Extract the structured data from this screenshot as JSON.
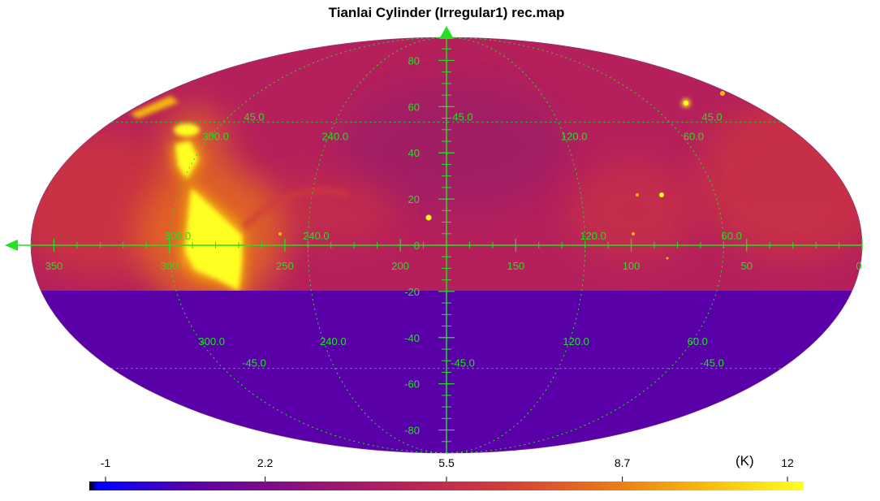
{
  "title": "Tianlai Cylinder (Irregular1) rec.map",
  "projection": "mollweide",
  "colors": {
    "grid": "#22e022",
    "background_dark": "#5a00a8",
    "sky_base": "#b5205c",
    "sky_warm": "#d23a3a",
    "bright": "#ffff20"
  },
  "map": {
    "x_axis_ticks": [
      "350",
      "300",
      "250",
      "200",
      "150",
      "100",
      "50",
      "0"
    ],
    "x_axis_tick_values": [
      350,
      300,
      250,
      200,
      150,
      100,
      50,
      0
    ],
    "y_axis_ticks": [
      "80",
      "60",
      "40",
      "20",
      "0",
      "-20",
      "-40",
      "-60",
      "-80"
    ],
    "y_axis_tick_values": [
      80,
      60,
      40,
      20,
      0,
      -20,
      -40,
      -60,
      -80
    ],
    "grid_lon_labels_upper": [
      "300.0",
      "240.0",
      "120.0",
      "60.0"
    ],
    "grid_lon_labels_equator": [
      "300.0",
      "240.0",
      "120.0",
      "60.0"
    ],
    "grid_lon_labels_lower": [
      "300.0",
      "240.0",
      "120.0",
      "60.0"
    ],
    "grid_lat_labels_north": [
      "45.0",
      "45.0",
      "45.0"
    ],
    "grid_lat_labels_south": [
      "-45.0",
      "-45.0",
      "-45.0"
    ],
    "grid_lat_values": [
      45,
      -45
    ],
    "grid_lon_values": [
      300,
      240,
      120,
      60
    ]
  },
  "colorbar": {
    "min": -1,
    "max": 12,
    "unit": "(K)",
    "tick_labels": [
      "-1",
      "2.2",
      "5.5",
      "8.7",
      "12"
    ],
    "tick_values": [
      -1,
      2.2,
      5.5,
      8.7,
      12
    ],
    "colormap": [
      "#000000",
      "#0000ff",
      "#5a00a8",
      "#8a1080",
      "#b5205c",
      "#d23a3a",
      "#e8701a",
      "#f7b80c",
      "#ffff20"
    ]
  }
}
